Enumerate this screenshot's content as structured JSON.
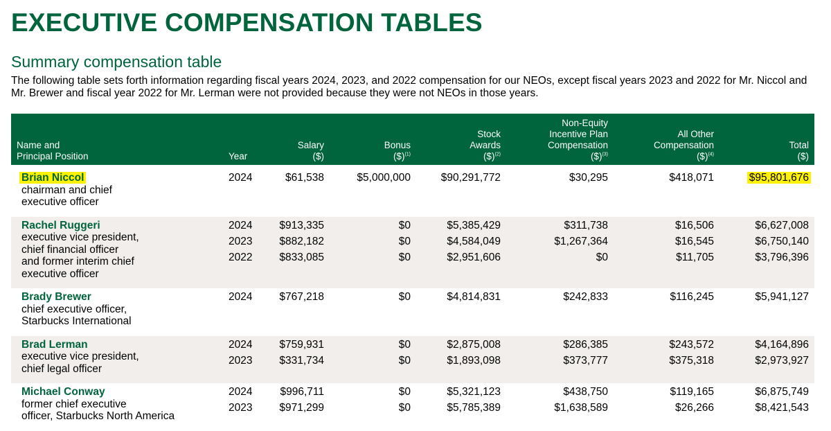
{
  "header": {
    "title": "EXECUTIVE COMPENSATION TABLES",
    "subtitle": "Summary compensation table",
    "intro": "The following table sets forth information regarding fiscal years 2024, 2023, and 2022 compensation for our NEOs, except fiscal years 2023 and 2022 for Mr. Niccol and Mr. Brewer and fiscal year 2022 for Mr. Lerman were not provided because they were not NEOs in those years."
  },
  "colors": {
    "brand_green": "#00643c",
    "row_shade": "#f1eeeb",
    "highlight": "#fff200"
  },
  "table": {
    "columns": {
      "name": [
        "Name and",
        "Principal Position"
      ],
      "year": [
        "Year"
      ],
      "salary": [
        "Salary",
        "($)"
      ],
      "bonus": [
        "Bonus",
        "($)",
        "(1)"
      ],
      "stock": [
        "Stock",
        "Awards",
        "($)",
        "(2)"
      ],
      "nonequity": [
        "Non-Equity",
        "Incentive Plan",
        "Compensation",
        "($)",
        "(3)"
      ],
      "other": [
        "All Other",
        "Compensation",
        "($)",
        "(4)"
      ],
      "total": [
        "Total",
        "($)"
      ]
    },
    "rows": [
      {
        "name": "Brian Niccol",
        "title": [
          "chairman and chief",
          "executive officer"
        ],
        "years": [
          {
            "year": "2024",
            "salary": "$61,538",
            "bonus": "$5,000,000",
            "stock": "$90,291,772",
            "nonequity": "$30,295",
            "other": "$418,071",
            "total": "$95,801,676"
          }
        ]
      },
      {
        "name": "Rachel Ruggeri",
        "title": [
          "executive vice president,",
          "chief financial officer",
          "and former interim chief",
          "executive officer"
        ],
        "years": [
          {
            "year": "2024",
            "salary": "$913,335",
            "bonus": "$0",
            "stock": "$5,385,429",
            "nonequity": "$311,738",
            "other": "$16,506",
            "total": "$6,627,008"
          },
          {
            "year": "2023",
            "salary": "$882,182",
            "bonus": "$0",
            "stock": "$4,584,049",
            "nonequity": "$1,267,364",
            "other": "$16,545",
            "total": "$6,750,140"
          },
          {
            "year": "2022",
            "salary": "$833,085",
            "bonus": "$0",
            "stock": "$2,951,606",
            "nonequity": "$0",
            "other": "$11,705",
            "total": "$3,796,396"
          }
        ]
      },
      {
        "name": "Brady Brewer",
        "title": [
          "chief executive officer,",
          "Starbucks International"
        ],
        "years": [
          {
            "year": "2024",
            "salary": "$767,218",
            "bonus": "$0",
            "stock": "$4,814,831",
            "nonequity": "$242,833",
            "other": "$116,245",
            "total": "$5,941,127"
          }
        ]
      },
      {
        "name": "Brad Lerman",
        "title": [
          "executive vice president,",
          "chief legal officer"
        ],
        "years": [
          {
            "year": "2024",
            "salary": "$759,931",
            "bonus": "$0",
            "stock": "$2,875,008",
            "nonequity": "$286,385",
            "other": "$243,572",
            "total": "$4,164,896"
          },
          {
            "year": "2023",
            "salary": "$331,734",
            "bonus": "$0",
            "stock": "$1,893,098",
            "nonequity": "$373,777",
            "other": "$375,318",
            "total": "$2,973,927"
          }
        ]
      },
      {
        "name": "Michael Conway",
        "title": [
          "former chief executive",
          "officer, Starbucks North America"
        ],
        "years": [
          {
            "year": "2024",
            "salary": "$996,711",
            "bonus": "$0",
            "stock": "$5,321,123",
            "nonequity": "$438,750",
            "other": "$119,165",
            "total": "$6,875,749"
          },
          {
            "year": "2023",
            "salary": "$971,299",
            "bonus": "$0",
            "stock": "$5,785,389",
            "nonequity": "$1,638,589",
            "other": "$26,266",
            "total": "$8,421,543"
          }
        ]
      }
    ]
  }
}
